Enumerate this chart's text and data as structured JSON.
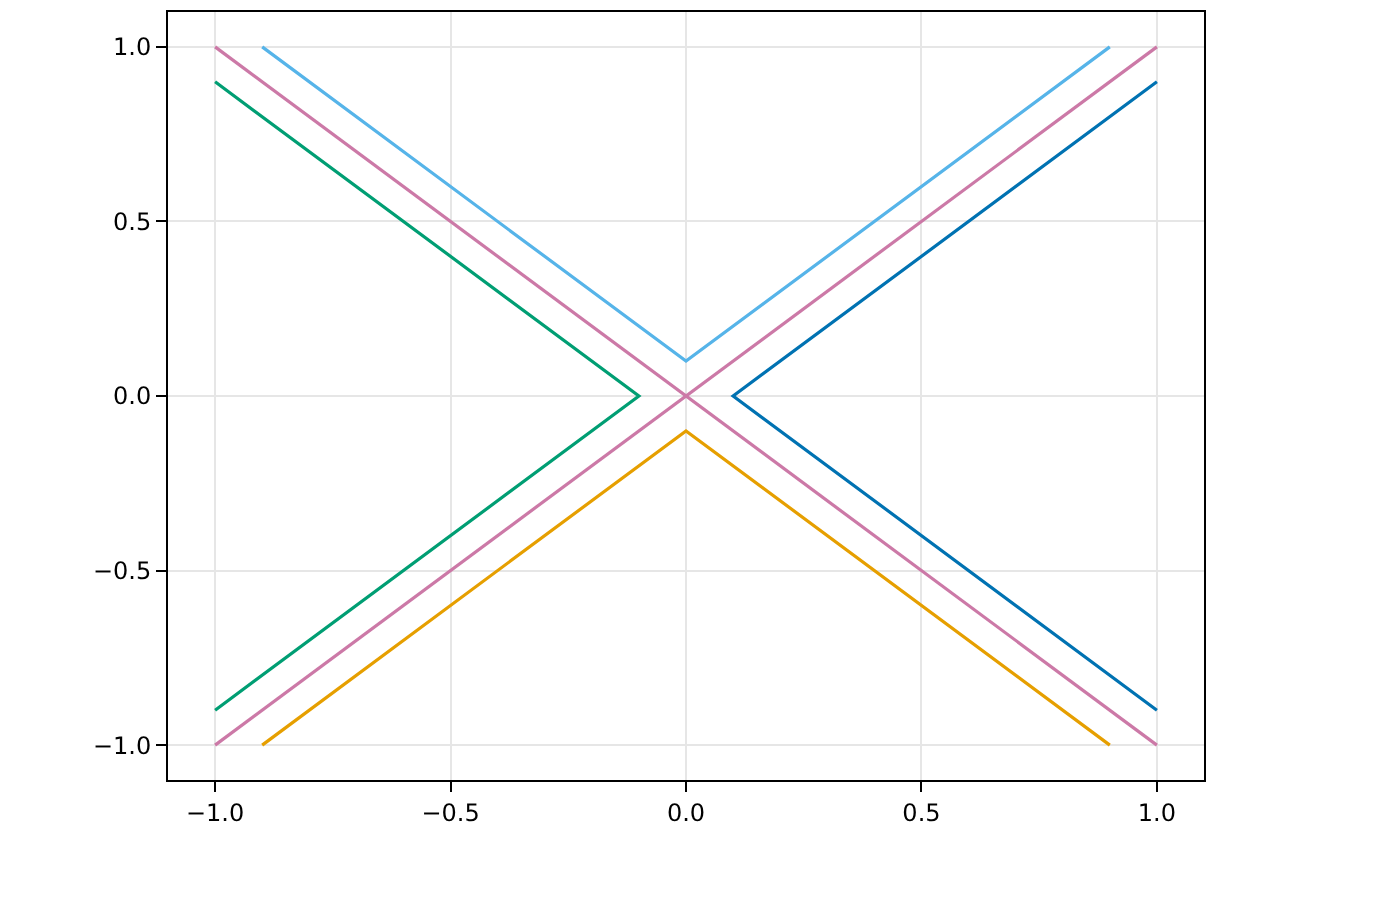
{
  "chart_data": {
    "type": "line",
    "series": [
      {
        "color": "#0072b2",
        "x": [
          1,
          0.1,
          1
        ],
        "values": [
          0.9,
          0,
          -0.9
        ]
      },
      {
        "color": "#e69f00",
        "x": [
          -0.9,
          0,
          0.9
        ],
        "values": [
          -1,
          -0.1,
          -1
        ]
      },
      {
        "color": "#009e73",
        "x": [
          -1,
          -0.1,
          -1
        ],
        "values": [
          0.9,
          0,
          -0.9
        ]
      },
      {
        "color": "#56b4e9",
        "x": [
          -0.9,
          0,
          0.9
        ],
        "values": [
          1,
          0.1,
          1
        ]
      },
      {
        "color": "#cc79a7",
        "x": [
          -1,
          1
        ],
        "values": [
          1,
          -1
        ]
      },
      {
        "color": "#cc79a7",
        "x": [
          -1,
          1
        ],
        "values": [
          -1,
          1
        ]
      }
    ],
    "xlim": [
      -1.1,
      1.1
    ],
    "ylim": [
      -1.1,
      1.1
    ],
    "xticks": [
      {
        "value": -1,
        "label": "−1.0"
      },
      {
        "value": -0.5,
        "label": "−0.5"
      },
      {
        "value": 0,
        "label": "0.0"
      },
      {
        "value": 0.5,
        "label": "0.5"
      },
      {
        "value": 1,
        "label": "1.0"
      }
    ],
    "yticks": [
      {
        "value": -1,
        "label": "−1.0"
      },
      {
        "value": -0.5,
        "label": "−0.5"
      },
      {
        "value": 0,
        "label": "0.0"
      },
      {
        "value": 0.5,
        "label": "0.5"
      },
      {
        "value": 1,
        "label": "1.0"
      }
    ],
    "grid": true,
    "marker": "none",
    "line_style": "solid"
  }
}
